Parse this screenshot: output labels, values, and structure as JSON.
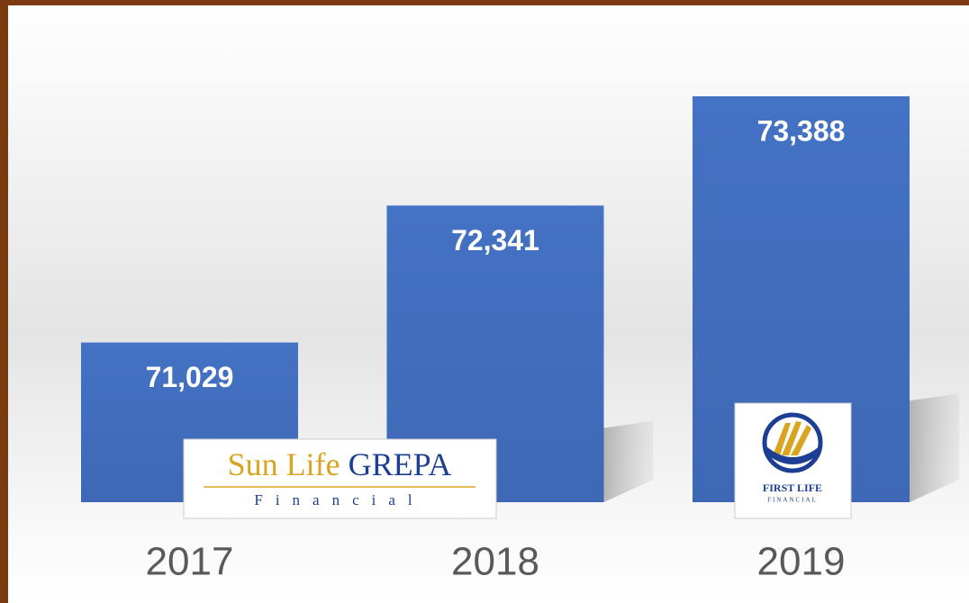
{
  "chart_data": {
    "type": "bar",
    "categories": [
      "2017",
      "2018",
      "2019"
    ],
    "values": [
      71029,
      72341,
      73388
    ],
    "value_labels": [
      "71,029",
      "72,341",
      "73,388"
    ],
    "color": "#4472c4",
    "ylim": [
      69500,
      73500
    ]
  },
  "logos": [
    {
      "title": "Sun Life",
      "title2": "GREPA",
      "subtitle": "Financial"
    },
    {
      "title": "FIRST LIFE",
      "subtitle": "FINANCIAL"
    }
  ]
}
